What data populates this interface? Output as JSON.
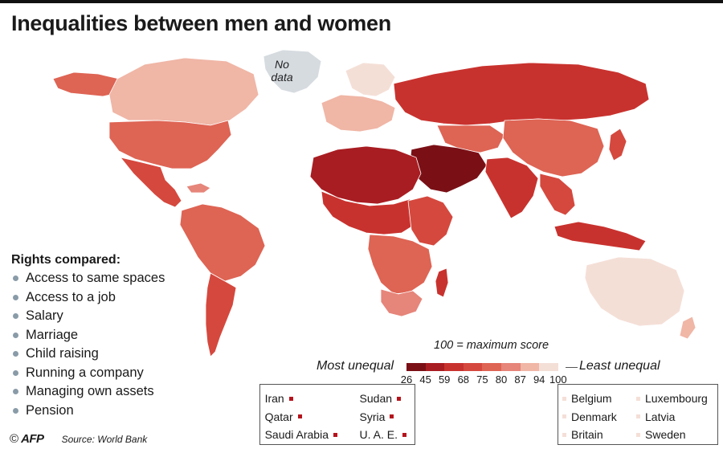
{
  "title": "Inequalities between men and women",
  "no_data_label": [
    "No",
    "data"
  ],
  "colors": {
    "scale": [
      "#7a1016",
      "#a81d22",
      "#c8322e",
      "#d5483e",
      "#de6454",
      "#e6857a",
      "#f0b6a6",
      "#f4dfd7"
    ],
    "no_data": "#d6dbe0",
    "ocean": "#ffffff"
  },
  "rights": {
    "heading": "Rights compared:",
    "items": [
      "Access to same spaces",
      "Access to a job",
      "Salary",
      "Marriage",
      "Child raising",
      "Running a company",
      "Managing own assets",
      "Pension"
    ]
  },
  "credit": {
    "copyright": "©",
    "agency": "AFP",
    "source": "Source: World Bank"
  },
  "legend": {
    "max_score": "100 = maximum score",
    "most_label": "Most unequal",
    "least_label": "Least unequal",
    "ticks": [
      "26",
      "45",
      "59",
      "68",
      "75",
      "80",
      "87",
      "94",
      "100"
    ]
  },
  "most_unequal_countries": {
    "col1": [
      "Iran",
      "Qatar",
      "Saudi Arabia"
    ],
    "col2": [
      "Sudan",
      "Syria",
      "U. A. E."
    ]
  },
  "least_unequal_countries": {
    "col1": [
      "Belgium",
      "Denmark",
      "Britain"
    ],
    "col2": [
      "Luxembourg",
      "Latvia",
      "Sweden"
    ]
  }
}
